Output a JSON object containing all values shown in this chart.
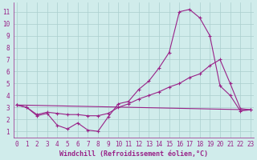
{
  "x": [
    0,
    1,
    2,
    3,
    4,
    5,
    6,
    7,
    8,
    9,
    10,
    11,
    12,
    13,
    14,
    15,
    16,
    17,
    18,
    19,
    20,
    21,
    22,
    23
  ],
  "line_zigzag": [
    3.2,
    3.0,
    2.3,
    2.5,
    1.5,
    1.2,
    1.7,
    1.1,
    1.0,
    2.2,
    3.3,
    3.5,
    4.5,
    5.2,
    6.3,
    7.6,
    11.0,
    11.2,
    10.5,
    9.0,
    4.8,
    4.0,
    2.7,
    2.8
  ],
  "line_mid": [
    3.2,
    3.0,
    2.4,
    2.6,
    2.5,
    2.4,
    2.4,
    2.3,
    2.3,
    2.5,
    3.0,
    3.3,
    3.7,
    4.0,
    4.3,
    4.7,
    5.0,
    5.5,
    5.8,
    6.5,
    7.0,
    5.0,
    2.9,
    2.8
  ],
  "line_straight": [
    [
      0,
      3.2
    ],
    [
      23,
      2.8
    ]
  ],
  "bg_color": "#d0eceb",
  "line_color": "#992288",
  "grid_color": "#aacfce",
  "xlabel": "Windchill (Refroidissement éolien,°C)",
  "ylim": [
    0.5,
    11.8
  ],
  "xlim": [
    -0.3,
    23.3
  ],
  "yticks": [
    1,
    2,
    3,
    4,
    5,
    6,
    7,
    8,
    9,
    10,
    11
  ],
  "xticks": [
    0,
    1,
    2,
    3,
    4,
    5,
    6,
    7,
    8,
    9,
    10,
    11,
    12,
    13,
    14,
    15,
    16,
    17,
    18,
    19,
    20,
    21,
    22,
    23
  ],
  "figsize": [
    3.2,
    2.0
  ],
  "dpi": 100,
  "tick_fontsize": 5.5,
  "xlabel_fontsize": 6.0,
  "marker": "+",
  "markersize": 3,
  "linewidth": 0.8
}
